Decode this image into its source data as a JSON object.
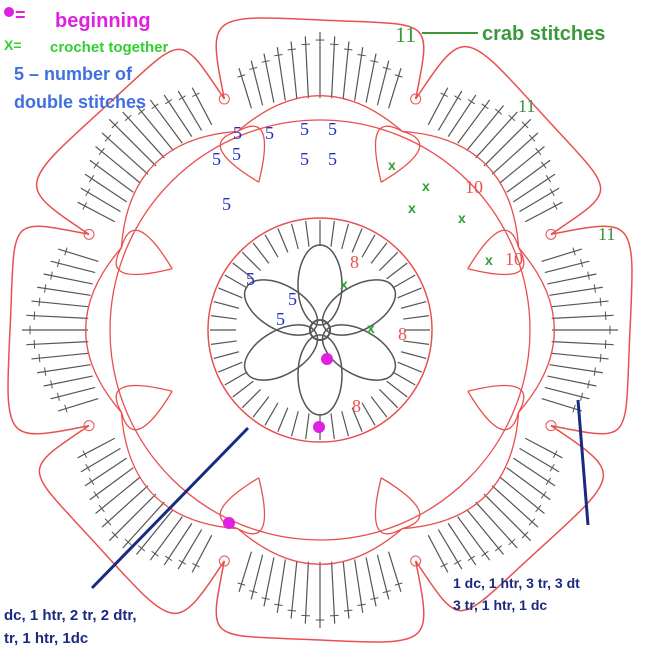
{
  "legend": {
    "beginning_symbol": "=",
    "beginning": "beginning",
    "together_symbol": "X=",
    "together": "crochet together",
    "number_lines": [
      "5 – number of",
      "double stitches"
    ]
  },
  "crab": {
    "number": "11",
    "label": "crab stitches"
  },
  "diagram_labels": [
    "11",
    "11",
    "10",
    "10",
    "8",
    "8",
    "8",
    "5",
    "5",
    "5",
    "5",
    "5",
    "5",
    "5",
    "5",
    "5",
    "5",
    "5",
    "5"
  ],
  "annotations": {
    "left": [
      "dc, 1 htr, 2 tr, 2 dtr,",
      "tr, 1 htr, 1dc"
    ],
    "right": [
      "1 dc, 1 htr, 3 tr, 3 dt",
      "3 tr, 1 htr, 1 dc"
    ]
  }
}
